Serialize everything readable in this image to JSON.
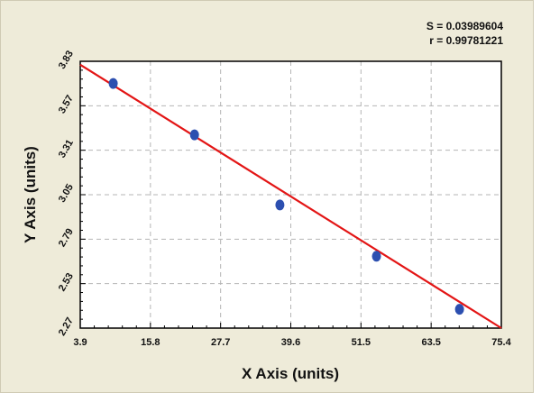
{
  "chart_data": {
    "type": "scatter",
    "title": "",
    "xlabel": "X Axis (units)",
    "ylabel": "Y Axis (units)",
    "xlim": [
      3.9,
      75.4
    ],
    "ylim": [
      2.27,
      3.83
    ],
    "x_ticks": [
      "3.9",
      "15.8",
      "27.7",
      "39.6",
      "51.5",
      "63.5",
      "75.4"
    ],
    "y_ticks": [
      "2.27",
      "2.53",
      "2.79",
      "3.05",
      "3.31",
      "3.57",
      "3.83"
    ],
    "grid": true,
    "annotations": [
      "S = 0.03989604",
      "r = 0.99781221"
    ],
    "series": [
      {
        "type": "scatter",
        "x": [
          9.5,
          23.3,
          37.8,
          54.2,
          68.3
        ],
        "y": [
          3.7,
          3.4,
          2.99,
          2.69,
          2.38
        ]
      },
      {
        "type": "line",
        "x": [
          3.9,
          75.4
        ],
        "y": [
          3.81,
          2.27
        ]
      }
    ],
    "colors": {
      "points": "#2c4fb0",
      "fit_line": "#e31515",
      "grid": "#b5b5b5"
    }
  }
}
